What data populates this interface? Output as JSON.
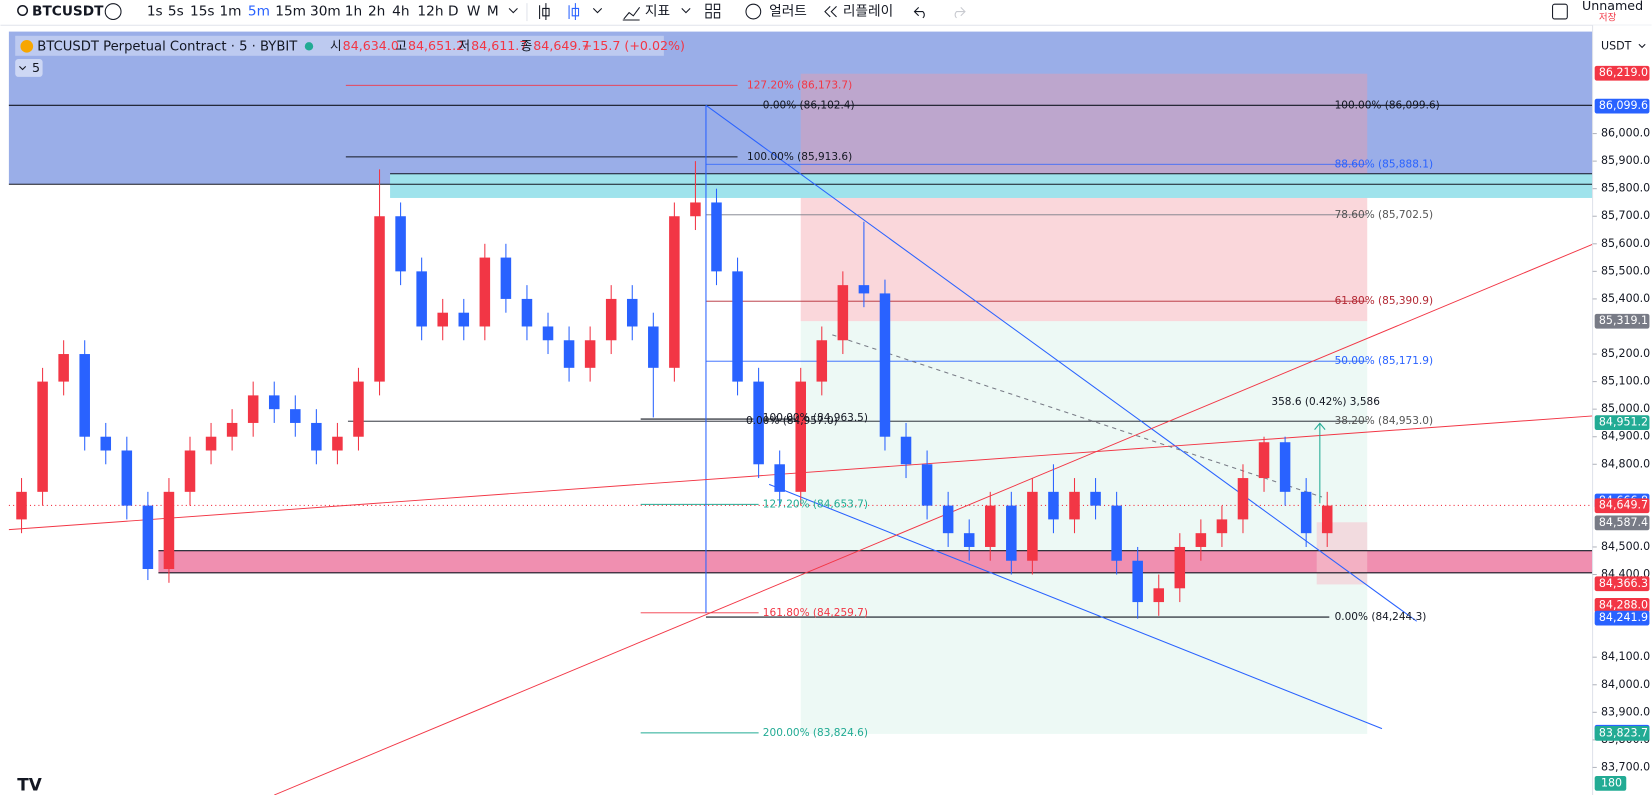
{
  "toolbar": {
    "symbol": "BTCUSDT",
    "intervals": [
      "1s",
      "5s",
      "15s",
      "1m",
      "5m",
      "15m",
      "30m",
      "1h",
      "2h",
      "4h",
      "12h",
      "D",
      "W",
      "M"
    ],
    "indicators": "지표",
    "alert": "얼러트",
    "replay": "리플레이",
    "layout_name": "Unnamed",
    "save": "저장"
  },
  "legend": {
    "title": "BTCUSDT Perpetual Contract · 5 · BYBIT",
    "open_label": "시",
    "open": "84,634.0",
    "high_label": "고",
    "high": "84,651.2",
    "low_label": "저",
    "low": "84,611.7",
    "close_label": "종",
    "close": "84,649.7",
    "change": "+15.7 (+0.02%)",
    "interval": "5"
  },
  "currency": "USDT",
  "drawings": {
    "fib_labels": [
      "127.20% (86,173.7)",
      "0.00% (86,102.4)",
      "100.00% (86,099.6)",
      "100.00% (85,913.6)",
      "88.60% (85,888.1)",
      "78.60% (85,702.5)",
      "61.80% (85,390.9)",
      "50.00% (85,171.9)",
      "38.20% (84,953.0)",
      "0.00% (84,957.0)",
      "100.00% (84,963.5)",
      "127.20% (84,653.7)",
      "161.80% (84,259.7)",
      "0.00% (84,244.3)",
      "200.00% (83,824.6)"
    ],
    "measure": "358.6 (0.42%) 3,586"
  },
  "volume_tag": 180,
  "chart_data": {
    "type": "candlestick",
    "up_color": "#f23645",
    "down_color": "#2962ff",
    "ylim": [
      83600,
      86370
    ],
    "yticks": [
      {
        "value": 86000,
        "label": "86,000.0"
      },
      {
        "value": 85900,
        "label": "85,900.0"
      },
      {
        "value": 85800,
        "label": "85,800.0"
      },
      {
        "value": 85700,
        "label": "85,700.0"
      },
      {
        "value": 85600,
        "label": "85,600.0"
      },
      {
        "value": 85500,
        "label": "85,500.0"
      },
      {
        "value": 85400,
        "label": "85,400.0"
      },
      {
        "value": 85200,
        "label": "85,200.0"
      },
      {
        "value": 85100,
        "label": "85,100.0"
      },
      {
        "value": 85000,
        "label": "85,000.0"
      },
      {
        "value": 84900,
        "label": "84,900.0"
      },
      {
        "value": 84800,
        "label": "84,800.0"
      },
      {
        "value": 84500,
        "label": "84,500.0"
      },
      {
        "value": 84400,
        "label": "84,400.0"
      },
      {
        "value": 84100,
        "label": "84,100.0"
      },
      {
        "value": 84000,
        "label": "84,000.0"
      },
      {
        "value": 83900,
        "label": "83,900.0"
      },
      {
        "value": 83800,
        "label": "83,800.0"
      },
      {
        "value": 83700,
        "label": "83,700.0"
      }
    ],
    "price_tags": [
      {
        "value": 86219.0,
        "label": "86,219.0",
        "color": "#f23645"
      },
      {
        "value": 86099.6,
        "label": "86,099.6",
        "color": "#2962ff"
      },
      {
        "value": 85319.1,
        "label": "85,319.1",
        "color": "#787b86"
      },
      {
        "value": 84951.2,
        "label": "84,951.2",
        "color": "#22ab94"
      },
      {
        "value": 84666.8,
        "label": "84,666.8",
        "color": "#2962ff"
      },
      {
        "value": 84649.7,
        "label": "84,649.7",
        "color": "#f23645"
      },
      {
        "value": 84587.4,
        "label": "84,587.4",
        "color": "#787b86"
      },
      {
        "value": 84366.3,
        "label": "84,366.3",
        "color": "#f23645"
      },
      {
        "value": 84288.0,
        "label": "84,288.0",
        "color": "#f23645"
      },
      {
        "value": 84241.9,
        "label": "84,241.9",
        "color": "#2962ff"
      },
      {
        "value": 83827.7,
        "label": "83,827.7",
        "color": "#2962ff"
      },
      {
        "value": 83823.7,
        "label": "83,823.7",
        "color": "#22ab94"
      }
    ],
    "candles": [
      [
        84600,
        84750,
        84550,
        84700
      ],
      [
        84700,
        85150,
        84650,
        85100
      ],
      [
        85100,
        85250,
        85050,
        85200
      ],
      [
        85200,
        85250,
        84850,
        84900
      ],
      [
        84900,
        84950,
        84800,
        84850
      ],
      [
        84850,
        84900,
        84600,
        84650
      ],
      [
        84650,
        84700,
        84380,
        84420
      ],
      [
        84420,
        84750,
        84370,
        84700
      ],
      [
        84700,
        84900,
        84650,
        84850
      ],
      [
        84850,
        84950,
        84800,
        84900
      ],
      [
        84900,
        85000,
        84850,
        84950
      ],
      [
        84950,
        85100,
        84900,
        85050
      ],
      [
        85050,
        85100,
        84950,
        85000
      ],
      [
        85000,
        85050,
        84900,
        84950
      ],
      [
        84950,
        85000,
        84800,
        84850
      ],
      [
        84850,
        84950,
        84800,
        84900
      ],
      [
        84900,
        85150,
        84850,
        85100
      ],
      [
        85100,
        85870,
        85050,
        85700
      ],
      [
        85700,
        85750,
        85450,
        85500
      ],
      [
        85500,
        85550,
        85250,
        85300
      ],
      [
        85300,
        85400,
        85250,
        85350
      ],
      [
        85350,
        85400,
        85250,
        85300
      ],
      [
        85300,
        85600,
        85250,
        85550
      ],
      [
        85550,
        85600,
        85350,
        85400
      ],
      [
        85400,
        85450,
        85250,
        85300
      ],
      [
        85300,
        85350,
        85200,
        85250
      ],
      [
        85250,
        85300,
        85100,
        85150
      ],
      [
        85150,
        85300,
        85100,
        85250
      ],
      [
        85250,
        85450,
        85200,
        85400
      ],
      [
        85400,
        85450,
        85250,
        85300
      ],
      [
        85300,
        85350,
        84970,
        85150
      ],
      [
        85150,
        85750,
        85100,
        85700
      ],
      [
        85700,
        85900,
        85650,
        85750
      ],
      [
        85750,
        85800,
        85450,
        85500
      ],
      [
        85500,
        85550,
        85050,
        85100
      ],
      [
        85100,
        85150,
        84750,
        84800
      ],
      [
        84800,
        84850,
        84650,
        84700
      ],
      [
        84700,
        85150,
        84650,
        85100
      ],
      [
        85100,
        85300,
        85050,
        85250
      ],
      [
        85250,
        85500,
        85200,
        85450
      ],
      [
        85450,
        85680,
        85370,
        85420
      ],
      [
        85420,
        85470,
        84850,
        84900
      ],
      [
        84900,
        84950,
        84750,
        84800
      ],
      [
        84800,
        84850,
        84600,
        84650
      ],
      [
        84650,
        84700,
        84500,
        84550
      ],
      [
        84550,
        84600,
        84450,
        84500
      ],
      [
        84500,
        84700,
        84450,
        84650
      ],
      [
        84650,
        84700,
        84400,
        84450
      ],
      [
        84450,
        84750,
        84400,
        84700
      ],
      [
        84700,
        84800,
        84550,
        84600
      ],
      [
        84600,
        84750,
        84550,
        84700
      ],
      [
        84700,
        84750,
        84600,
        84650
      ],
      [
        84650,
        84700,
        84400,
        84450
      ],
      [
        84450,
        84500,
        84240,
        84300
      ],
      [
        84300,
        84400,
        84250,
        84350
      ],
      [
        84350,
        84550,
        84300,
        84500
      ],
      [
        84500,
        84600,
        84450,
        84550
      ],
      [
        84550,
        84650,
        84500,
        84600
      ],
      [
        84600,
        84800,
        84550,
        84750
      ],
      [
        84750,
        84900,
        84700,
        84880
      ],
      [
        84880,
        84900,
        84650,
        84700
      ],
      [
        84700,
        84750,
        84500,
        84550
      ],
      [
        84550,
        84700,
        84500,
        84650
      ]
    ]
  }
}
